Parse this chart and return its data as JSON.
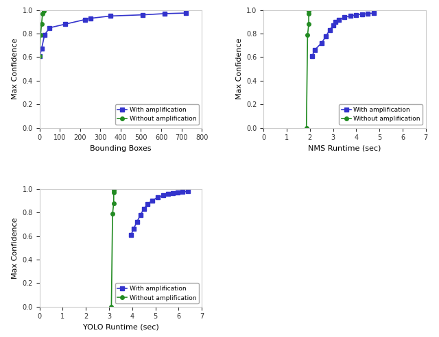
{
  "plot1": {
    "xlabel": "Bounding Boxes",
    "ylabel": "Max Confidence",
    "xlim": [
      0,
      800
    ],
    "ylim": [
      0.0,
      1.0
    ],
    "xticks": [
      0,
      100,
      200,
      300,
      400,
      500,
      600,
      700,
      800
    ],
    "yticks": [
      0.0,
      0.2,
      0.4,
      0.6,
      0.8,
      1.0
    ],
    "blue_x": [
      1,
      10,
      25,
      50,
      125,
      225,
      250,
      350,
      510,
      615,
      720
    ],
    "blue_y": [
      0.61,
      0.67,
      0.79,
      0.85,
      0.88,
      0.92,
      0.93,
      0.95,
      0.96,
      0.97,
      0.975
    ],
    "green_x": [
      1,
      5,
      10,
      15,
      20
    ],
    "green_y": [
      0.61,
      0.79,
      0.88,
      0.97,
      0.99
    ]
  },
  "plot2": {
    "xlabel": "NMS Runtime (sec)",
    "ylabel": "Max Confidence",
    "xlim": [
      0,
      7
    ],
    "ylim": [
      0.0,
      1.0
    ],
    "xticks": [
      0,
      1,
      2,
      3,
      4,
      5,
      6,
      7
    ],
    "yticks": [
      0.0,
      0.2,
      0.4,
      0.6,
      0.8,
      1.0
    ],
    "blue_x": [
      2.1,
      2.2,
      2.5,
      2.7,
      2.85,
      3.0,
      3.1,
      3.25,
      3.5,
      3.75,
      4.0,
      4.25,
      4.5,
      4.75
    ],
    "blue_y": [
      0.61,
      0.66,
      0.72,
      0.78,
      0.83,
      0.87,
      0.9,
      0.92,
      0.94,
      0.95,
      0.96,
      0.965,
      0.97,
      0.975
    ],
    "green_x": [
      1.85,
      1.9,
      1.95,
      1.95,
      1.95
    ],
    "green_y": [
      0.0,
      0.79,
      0.88,
      0.97,
      0.99
    ]
  },
  "plot3": {
    "xlabel": "YOLO Runtime (sec)",
    "ylabel": "Max Confidence",
    "xlim": [
      0,
      7
    ],
    "ylim": [
      0.0,
      1.0
    ],
    "xticks": [
      0,
      1,
      2,
      3,
      4,
      5,
      6,
      7
    ],
    "yticks": [
      0.0,
      0.2,
      0.4,
      0.6,
      0.8,
      1.0
    ],
    "blue_x": [
      3.95,
      4.05,
      4.2,
      4.35,
      4.5,
      4.65,
      4.85,
      5.1,
      5.35,
      5.55,
      5.75,
      5.95,
      6.15,
      6.4
    ],
    "blue_y": [
      0.61,
      0.66,
      0.72,
      0.78,
      0.83,
      0.87,
      0.9,
      0.93,
      0.945,
      0.96,
      0.965,
      0.97,
      0.975,
      0.98
    ],
    "green_x": [
      3.1,
      3.15,
      3.2,
      3.2,
      3.2
    ],
    "green_y": [
      0.0,
      0.79,
      0.88,
      0.97,
      0.99
    ]
  },
  "blue_color": "#3333cc",
  "green_color": "#228B22",
  "marker_size": 4,
  "linewidth": 1.2,
  "legend_with": "With amplification",
  "legend_without": "Without amplification",
  "bg_color": "#ffffff",
  "fig_width": 6.4,
  "fig_height": 4.92,
  "xlabel_fontsize": 8,
  "ylabel_fontsize": 8,
  "tick_fontsize": 7,
  "legend_fontsize": 6.5
}
